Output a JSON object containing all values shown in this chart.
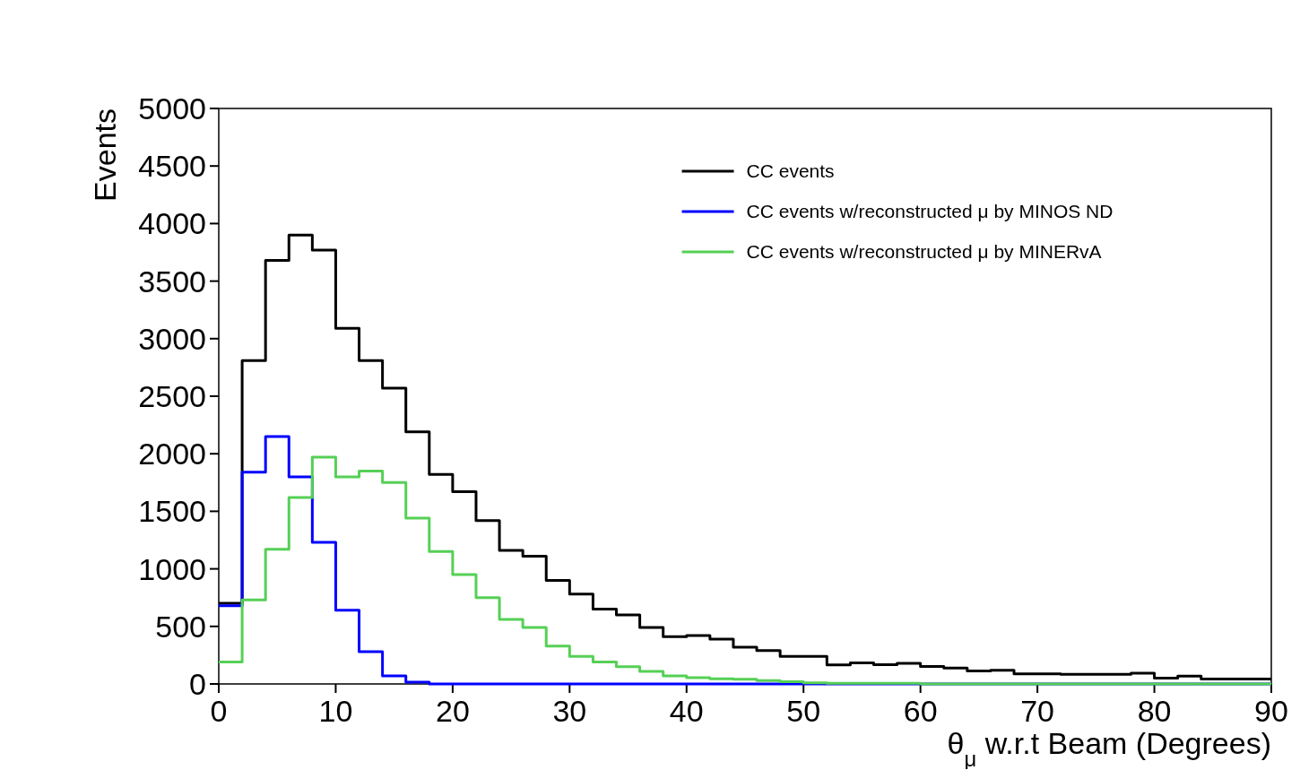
{
  "chart_data": {
    "type": "histogram",
    "xlabel": "θ$_{μ}$ w.r.t Beam (Degrees)",
    "ylabel": "Events",
    "bins": [
      0,
      2,
      4,
      6,
      8,
      10,
      12,
      14,
      16,
      18,
      20,
      22,
      24,
      26,
      28,
      30,
      32,
      34,
      36,
      38,
      40,
      42,
      44,
      46,
      48,
      50,
      52,
      54,
      56,
      58,
      60,
      62,
      64,
      66,
      68,
      70,
      72,
      74,
      76,
      78,
      80,
      82,
      84,
      86,
      88,
      90
    ],
    "series": [
      {
        "name": "CC events",
        "color": "#000000",
        "values": [
          700,
          2810,
          3680,
          3900,
          3770,
          3090,
          2810,
          2570,
          2190,
          1820,
          1670,
          1420,
          1160,
          1110,
          900,
          780,
          650,
          600,
          490,
          410,
          420,
          390,
          320,
          290,
          240,
          240,
          165,
          183,
          168,
          179,
          151,
          138,
          113,
          118,
          88,
          88,
          83,
          83,
          83,
          93,
          50,
          68,
          42,
          42,
          42
        ]
      },
      {
        "name": "CC events w/reconstructed μ by MINOS ND",
        "color": "#0000ff",
        "values": [
          680,
          1840,
          2150,
          1800,
          1230,
          640,
          280,
          70,
          15,
          0,
          0,
          0,
          0,
          0,
          0,
          0,
          0,
          0,
          0,
          0,
          0,
          0,
          0,
          0,
          0,
          0,
          0,
          0,
          0,
          0,
          0,
          0,
          0,
          0,
          0,
          0,
          0,
          0,
          0,
          0,
          0,
          0,
          0,
          0,
          0
        ]
      },
      {
        "name": "CC events w/reconstructed μ by MINERvA",
        "color": "#55d055",
        "values": [
          190,
          730,
          1170,
          1620,
          1970,
          1800,
          1850,
          1750,
          1440,
          1150,
          950,
          750,
          560,
          490,
          330,
          240,
          190,
          150,
          110,
          70,
          55,
          45,
          40,
          30,
          20,
          10,
          5,
          5,
          5,
          5,
          0,
          0,
          0,
          0,
          0,
          0,
          0,
          0,
          0,
          0,
          0,
          0,
          0,
          0,
          0
        ]
      }
    ],
    "xlim": [
      0,
      90
    ],
    "xticks": [
      0,
      10,
      20,
      30,
      40,
      50,
      60,
      70,
      80,
      90
    ],
    "ylim": [
      0,
      5000
    ],
    "yticks": [
      0,
      500,
      1000,
      1500,
      2000,
      2500,
      3000,
      3500,
      4000,
      4500,
      5000
    ],
    "legend": "top right",
    "grid": false
  }
}
